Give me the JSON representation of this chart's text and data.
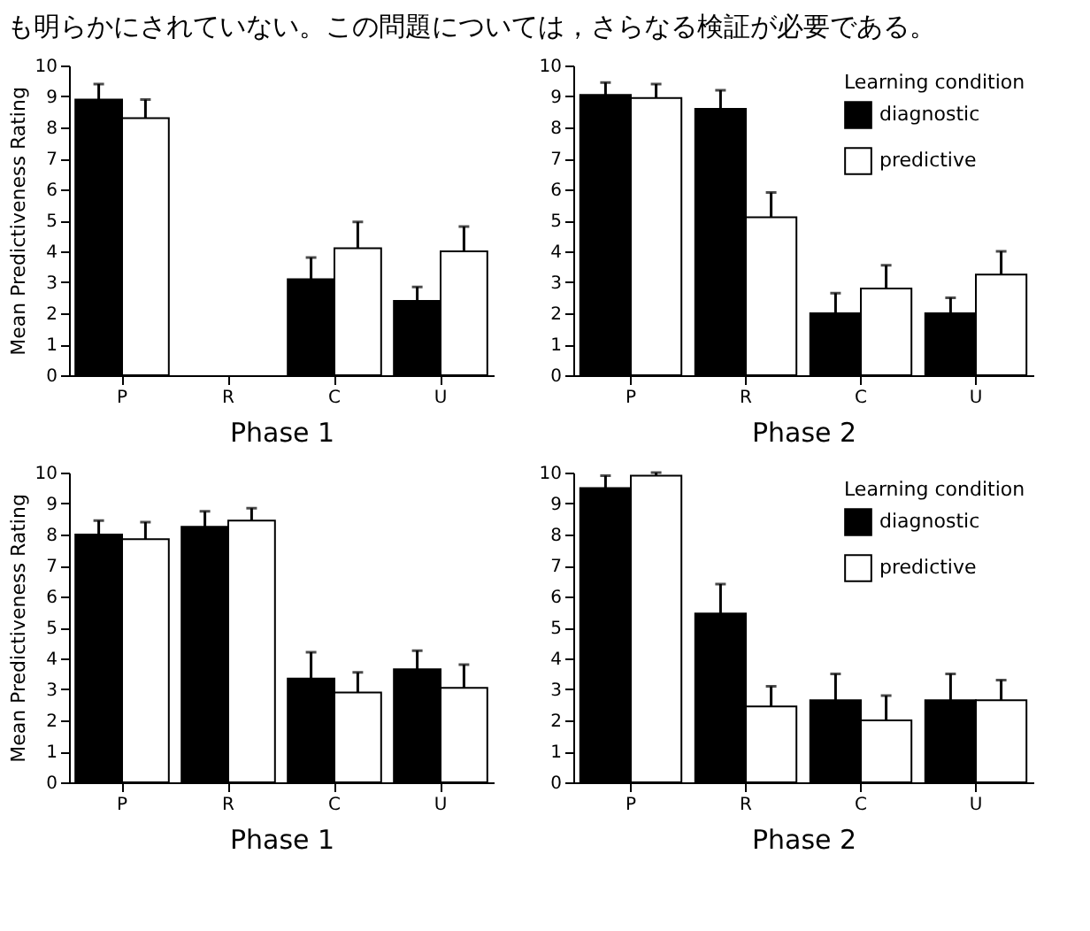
{
  "chart_data": [
    {
      "type": "bar",
      "xlabel": "Phase 1",
      "ylabel": "Mean Predictiveness Rating",
      "annotations": [
        "も明らかにされていない。この問題については，さらなる検証が必要である。"
      ],
      "categories": [
        "P",
        "R",
        "C",
        "U"
      ],
      "ylim": [
        0,
        10
      ],
      "yticks": [
        0,
        1,
        2,
        3,
        4,
        5,
        6,
        7,
        8,
        9,
        10
      ],
      "grid": false,
      "legend": false,
      "series": [
        {
          "color": "#000000",
          "values": [
            8.9,
            null,
            3.1,
            2.4
          ],
          "errors": [
            [
              8.9,
              9.4
            ],
            null,
            [
              3.1,
              3.8
            ],
            [
              2.4,
              2.85
            ]
          ]
        },
        {
          "color": "#ffffff",
          "values": [
            8.3,
            null,
            4.1,
            4.0
          ],
          "errors": [
            [
              8.3,
              8.9
            ],
            null,
            [
              4.1,
              4.95
            ],
            [
              4.0,
              4.8
            ]
          ]
        }
      ]
    },
    {
      "type": "bar",
      "xlabel": "Phase 2",
      "legend_title": "Learning condition",
      "categories": [
        "P",
        "R",
        "C",
        "U"
      ],
      "ylim": [
        0,
        10
      ],
      "yticks": [
        0,
        1,
        2,
        3,
        4,
        5,
        6,
        7,
        8,
        9,
        10
      ],
      "grid": false,
      "legend": "top right",
      "series": [
        {
          "name": "diagnostic",
          "color": "#000000",
          "values": [
            9.05,
            8.6,
            2.0,
            2.0
          ],
          "errors": [
            [
              9.05,
              9.45
            ],
            [
              8.6,
              9.2
            ],
            [
              2.0,
              2.65
            ],
            [
              2.0,
              2.5
            ]
          ]
        },
        {
          "name": "predictive",
          "color": "#ffffff",
          "values": [
            8.95,
            5.1,
            2.8,
            3.25
          ],
          "errors": [
            [
              8.95,
              9.4
            ],
            [
              5.1,
              5.9
            ],
            [
              2.8,
              3.55
            ],
            [
              3.25,
              4.0
            ]
          ]
        }
      ]
    },
    {
      "type": "bar",
      "xlabel": "Phase 1",
      "ylabel": "Mean Predictiveness Rating",
      "categories": [
        "P",
        "R",
        "C",
        "U"
      ],
      "ylim": [
        0,
        10
      ],
      "yticks": [
        0,
        1,
        2,
        3,
        4,
        5,
        6,
        7,
        8,
        9,
        10
      ],
      "grid": false,
      "legend": false,
      "series": [
        {
          "color": "#000000",
          "values": [
            8.0,
            8.25,
            3.35,
            3.65
          ],
          "errors": [
            [
              8.0,
              8.45
            ],
            [
              8.25,
              8.75
            ],
            [
              3.35,
              4.2
            ],
            [
              3.65,
              4.25
            ]
          ]
        },
        {
          "color": "#ffffff",
          "values": [
            7.85,
            8.45,
            2.9,
            3.05
          ],
          "errors": [
            [
              7.85,
              8.4
            ],
            [
              8.45,
              8.85
            ],
            [
              2.9,
              3.55
            ],
            [
              3.05,
              3.8
            ]
          ]
        }
      ]
    },
    {
      "type": "bar",
      "xlabel": "Phase 2",
      "legend_title": "Learning condition",
      "categories": [
        "P",
        "R",
        "C",
        "U"
      ],
      "ylim": [
        0,
        10
      ],
      "yticks": [
        0,
        1,
        2,
        3,
        4,
        5,
        6,
        7,
        8,
        9,
        10
      ],
      "grid": false,
      "legend": "top right",
      "series": [
        {
          "name": "diagnostic",
          "color": "#000000",
          "values": [
            9.5,
            5.45,
            2.65,
            2.65
          ],
          "errors": [
            [
              9.5,
              9.9
            ],
            [
              5.45,
              6.4
            ],
            [
              2.65,
              3.5
            ],
            [
              2.65,
              3.5
            ]
          ]
        },
        {
          "name": "predictive",
          "color": "#ffffff",
          "values": [
            9.9,
            2.45,
            2.0,
            2.65
          ],
          "errors": [
            [
              9.9,
              10.0
            ],
            [
              2.45,
              3.1
            ],
            [
              2.0,
              2.8
            ],
            [
              2.65,
              3.3
            ]
          ]
        }
      ]
    }
  ]
}
